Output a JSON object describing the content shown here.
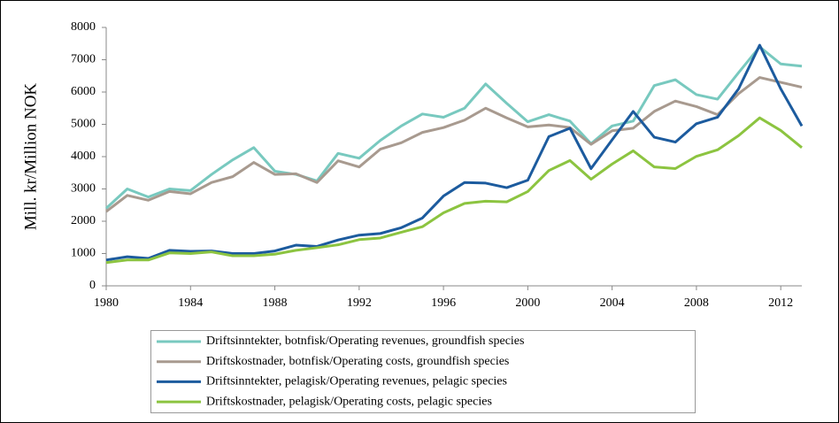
{
  "chart_data": {
    "type": "line",
    "y_label": "Mill. kr/Million NOK",
    "x": [
      1980,
      1981,
      1982,
      1983,
      1984,
      1985,
      1986,
      1987,
      1988,
      1989,
      1990,
      1991,
      1992,
      1993,
      1994,
      1995,
      1996,
      1997,
      1998,
      1999,
      2000,
      2001,
      2002,
      2003,
      2004,
      2005,
      2006,
      2007,
      2008,
      2009,
      2010,
      2011,
      2012,
      2013
    ],
    "xlim": [
      1980,
      2013
    ],
    "xticks": [
      1980,
      1984,
      1988,
      1992,
      1996,
      2000,
      2004,
      2008,
      2012
    ],
    "ylim": [
      0,
      8000
    ],
    "yticks": [
      0,
      1000,
      2000,
      3000,
      4000,
      5000,
      6000,
      7000,
      8000
    ],
    "grid": false,
    "series": [
      {
        "name": "Driftsinntekter, botnfisk/Operating revenues, groundfish species",
        "color": "#78c9bf",
        "values": [
          2400,
          3000,
          2750,
          3000,
          2950,
          3450,
          3900,
          4280,
          3550,
          3450,
          3250,
          4100,
          3950,
          4500,
          4950,
          5320,
          5220,
          5500,
          6250,
          5650,
          5080,
          5300,
          5100,
          4400,
          4950,
          5100,
          6200,
          6380,
          5920,
          5780,
          6600,
          7400,
          6870,
          6800
        ]
      },
      {
        "name": "Driftskostnader, botnfisk/Operating costs, groundfish species",
        "color": "#a89a8f",
        "values": [
          2300,
          2800,
          2650,
          2920,
          2850,
          3200,
          3380,
          3820,
          3450,
          3470,
          3200,
          3870,
          3680,
          4230,
          4430,
          4750,
          4900,
          5130,
          5500,
          5200,
          4920,
          4980,
          4900,
          4380,
          4800,
          4880,
          5400,
          5720,
          5550,
          5300,
          5950,
          6450,
          6300,
          6150
        ]
      },
      {
        "name": "Driftsinntekter, pelagisk/Operating revenues, pelagic species",
        "color": "#1c5b9e",
        "values": [
          800,
          900,
          850,
          1100,
          1070,
          1080,
          1000,
          1000,
          1080,
          1260,
          1220,
          1420,
          1570,
          1620,
          1800,
          2100,
          2780,
          3200,
          3180,
          3040,
          3270,
          4620,
          4880,
          3630,
          4520,
          5400,
          4600,
          4450,
          5020,
          5220,
          6100,
          7450,
          6100,
          4950
        ]
      },
      {
        "name": "Driftskostnader, pelagisk/Operating costs, pelagic species",
        "color": "#8cc440",
        "values": [
          720,
          800,
          800,
          1020,
          1000,
          1050,
          930,
          930,
          980,
          1100,
          1180,
          1270,
          1430,
          1480,
          1660,
          1830,
          2260,
          2550,
          2620,
          2600,
          2920,
          3570,
          3880,
          3300,
          3770,
          4180,
          3680,
          3630,
          4010,
          4210,
          4650,
          5200,
          4810,
          4280
        ]
      }
    ]
  }
}
